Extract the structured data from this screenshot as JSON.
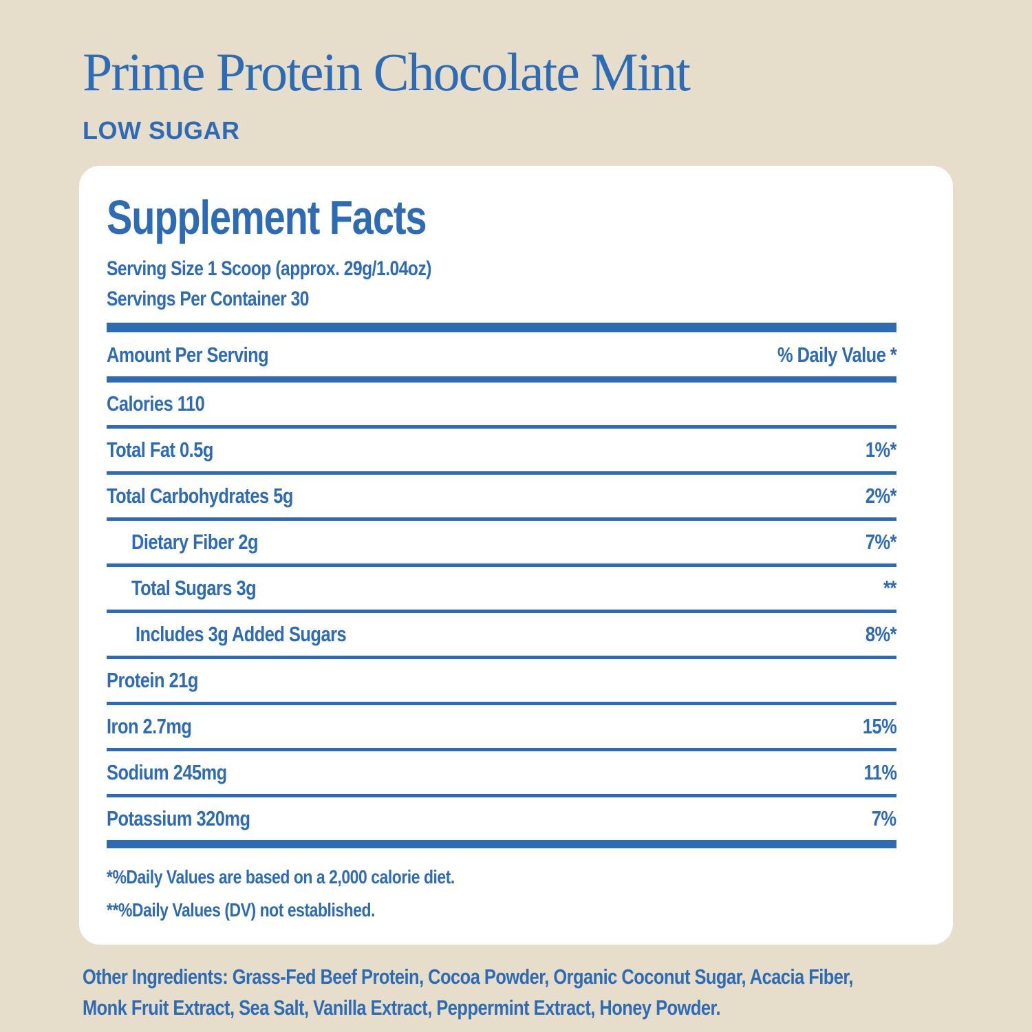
{
  "header": {
    "title": "Prime Protein Chocolate Mint",
    "subtitle": "LOW SUGAR"
  },
  "panel": {
    "heading": "Supplement Facts",
    "serving_size": "Serving Size 1 Scoop (approx. 29g/1.04oz)",
    "servings_per_container": "Servings Per Container 30",
    "table": {
      "header_left": "Amount Per Serving",
      "header_right": "% Daily Value *",
      "rows": [
        {
          "label": "Calories 110",
          "value": "",
          "indent": 0
        },
        {
          "label": "Total Fat 0.5g",
          "value": "1%*",
          "indent": 0
        },
        {
          "label": "Total Carbohydrates 5g",
          "value": "2%*",
          "indent": 0
        },
        {
          "label": "Dietary Fiber 2g",
          "value": "7%*",
          "indent": 1
        },
        {
          "label": "Total Sugars 3g",
          "value": "**",
          "indent": 1
        },
        {
          "label": "Includes 3g Added Sugars",
          "value": "8%*",
          "indent": 2
        },
        {
          "label": "Protein 21g",
          "value": "",
          "indent": 0
        },
        {
          "label": "Iron 2.7mg",
          "value": "15%",
          "indent": 0
        },
        {
          "label": "Sodium 245mg",
          "value": "11%",
          "indent": 0
        },
        {
          "label": "Potassium 320mg",
          "value": "7%",
          "indent": 0
        }
      ]
    },
    "footnotes": [
      "*%Daily Values are based on a 2,000 calorie diet.",
      "**%Daily Values (DV) not established."
    ]
  },
  "ingredients": {
    "lines": [
      "Other Ingredients: Grass-Fed Beef Protein, Cocoa Powder, Organic Coconut Sugar, Acacia Fiber,",
      "Monk Fruit Extract, Sea Salt, Vanilla Extract, Peppermint Extract, Honey Powder."
    ],
    "full_text": "Other Ingredients: Grass-Fed Beef Protein, Cocoa Powder, Organic Coconut Sugar, Acacia Fiber, Monk Fruit Extract, Sea Salt, Vanilla Extract, Peppermint Extract, Honey Powder."
  },
  "colors": {
    "accent_blue": "#2d6bb5",
    "background_beige": "#e6decb",
    "card_white": "#ffffff"
  }
}
